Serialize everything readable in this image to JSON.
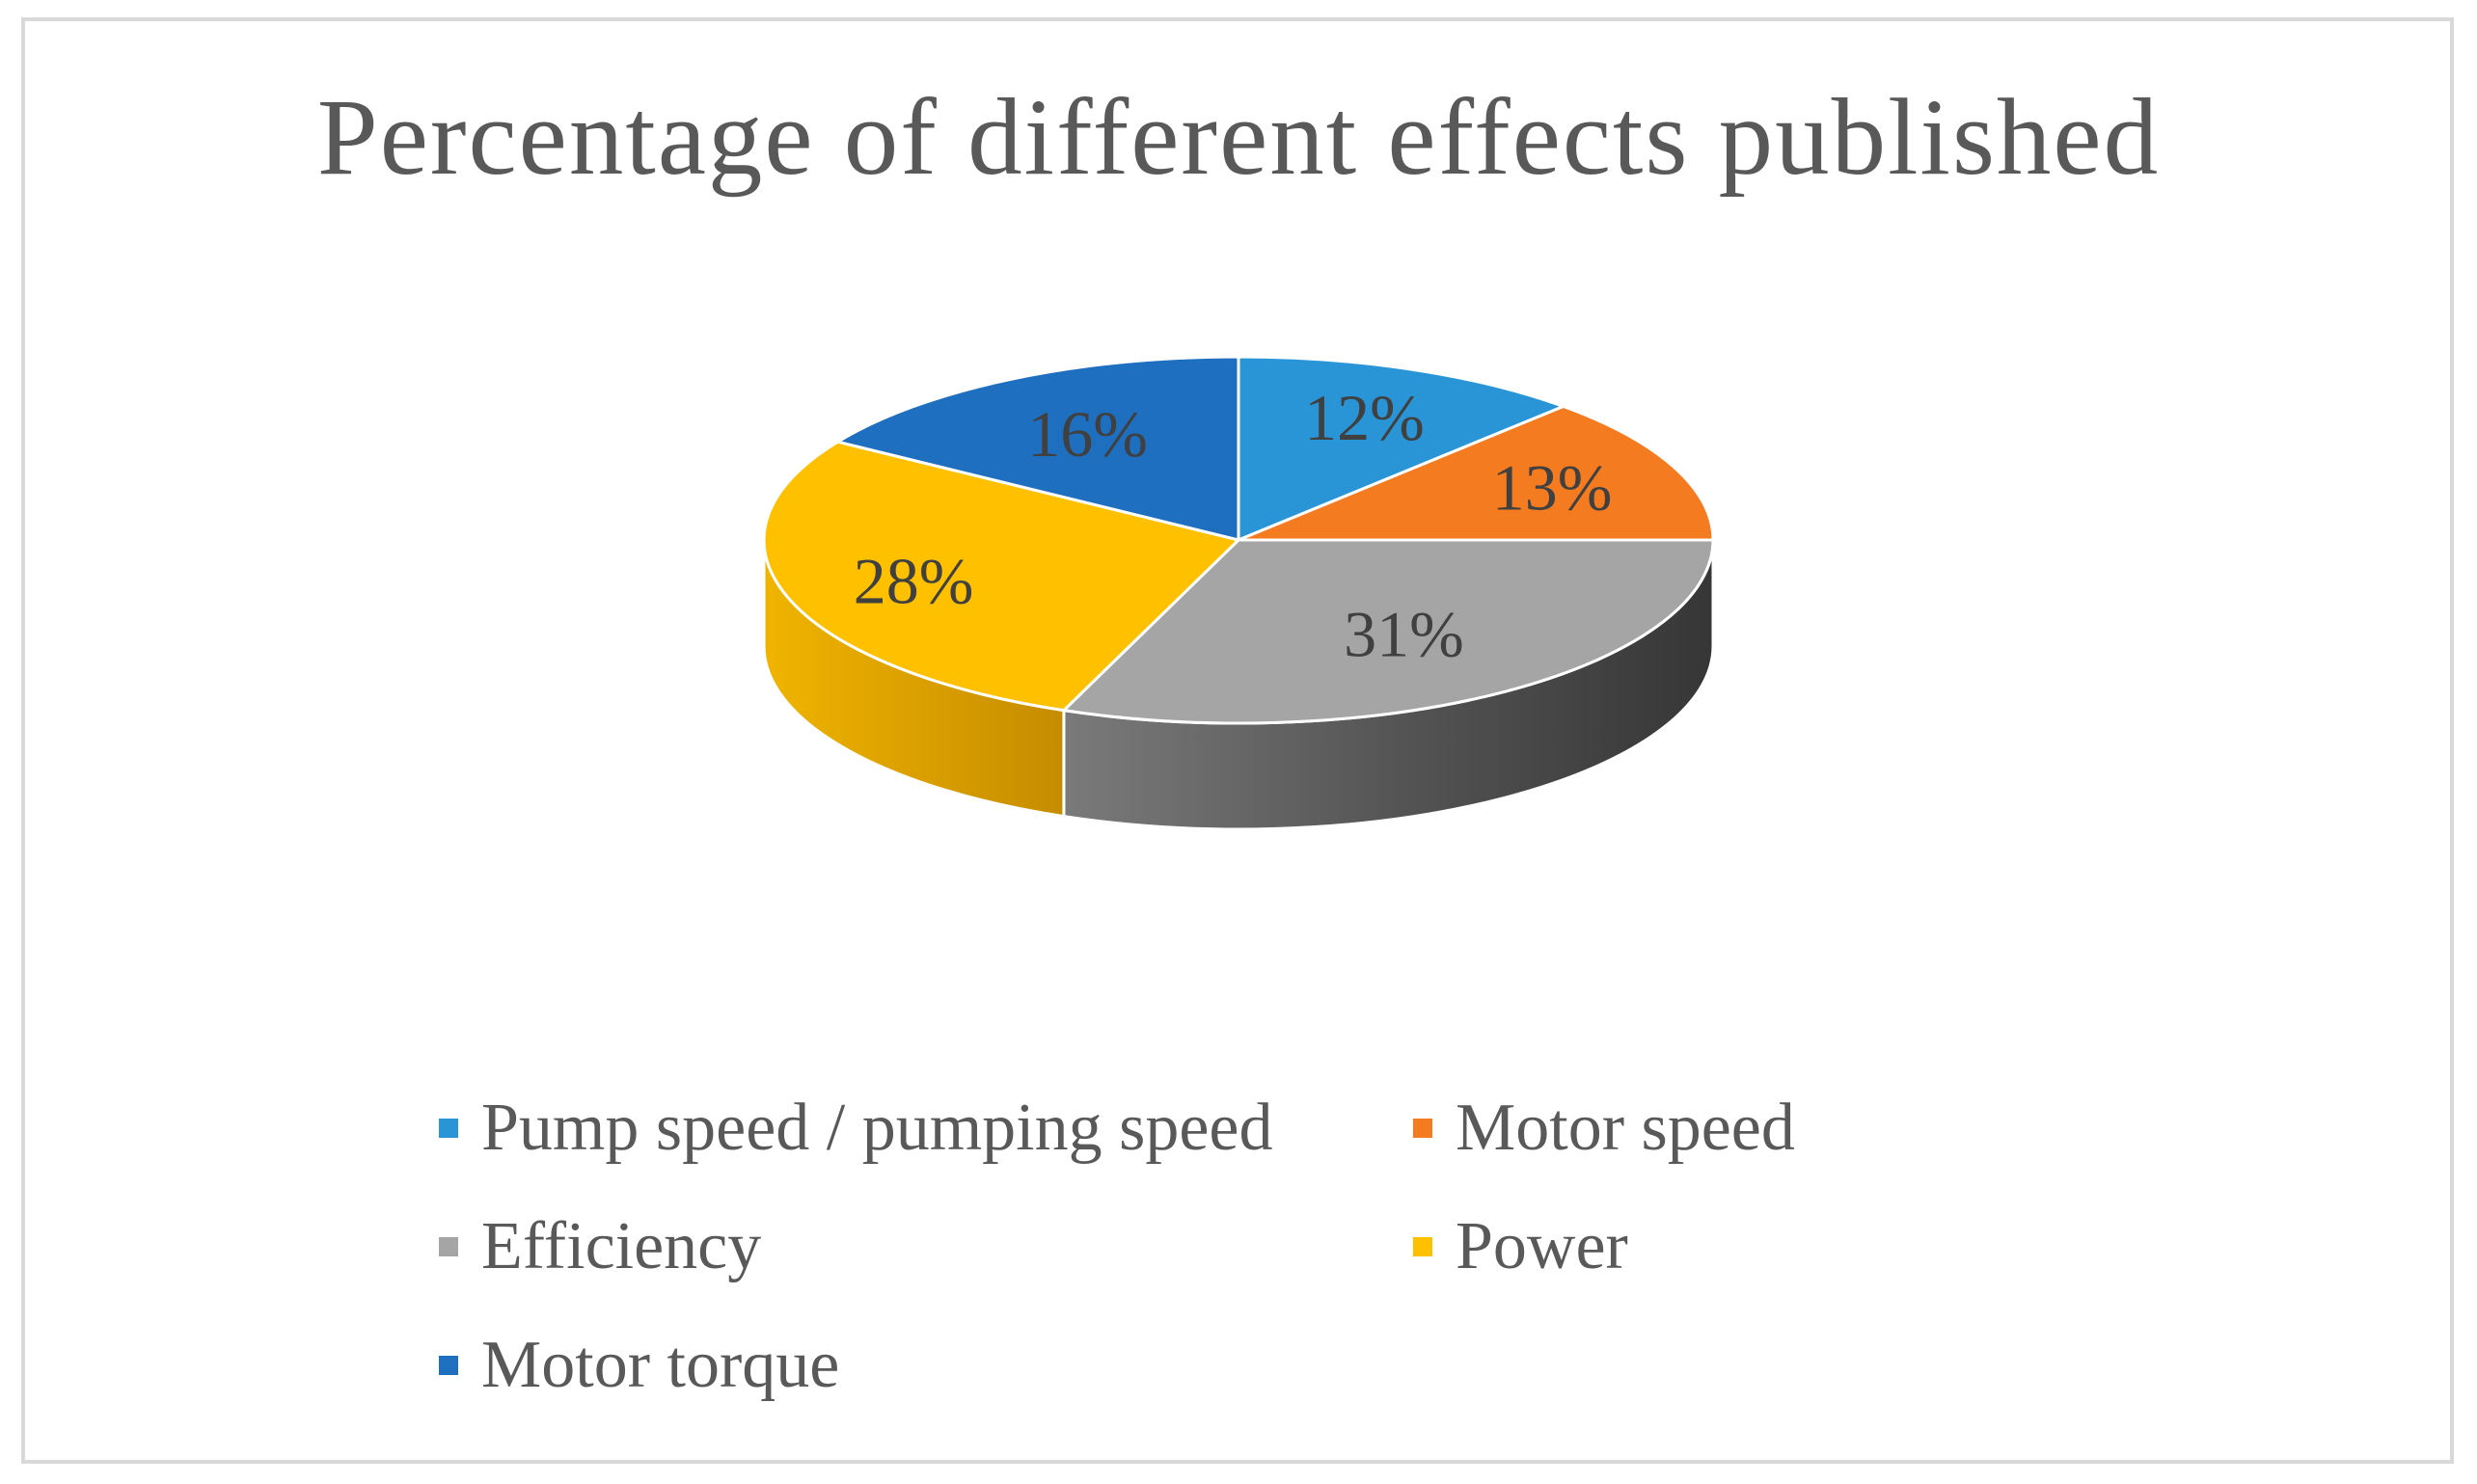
{
  "chart_data": {
    "type": "pie",
    "style": "3d",
    "title": "Percentage of different effects published",
    "categories": [
      "Pump speed / pumping speed",
      "Motor speed",
      "Efficiency",
      "Power",
      "Motor torque"
    ],
    "values": [
      12,
      13,
      31,
      28,
      16
    ],
    "labels": [
      "12%",
      "13%",
      "31%",
      "28%",
      "16%"
    ],
    "colors": [
      "#2a95d6",
      "#f47b20",
      "#a5a5a5",
      "#ffc000",
      "#1f6fc0"
    ],
    "legend_position": "bottom"
  }
}
